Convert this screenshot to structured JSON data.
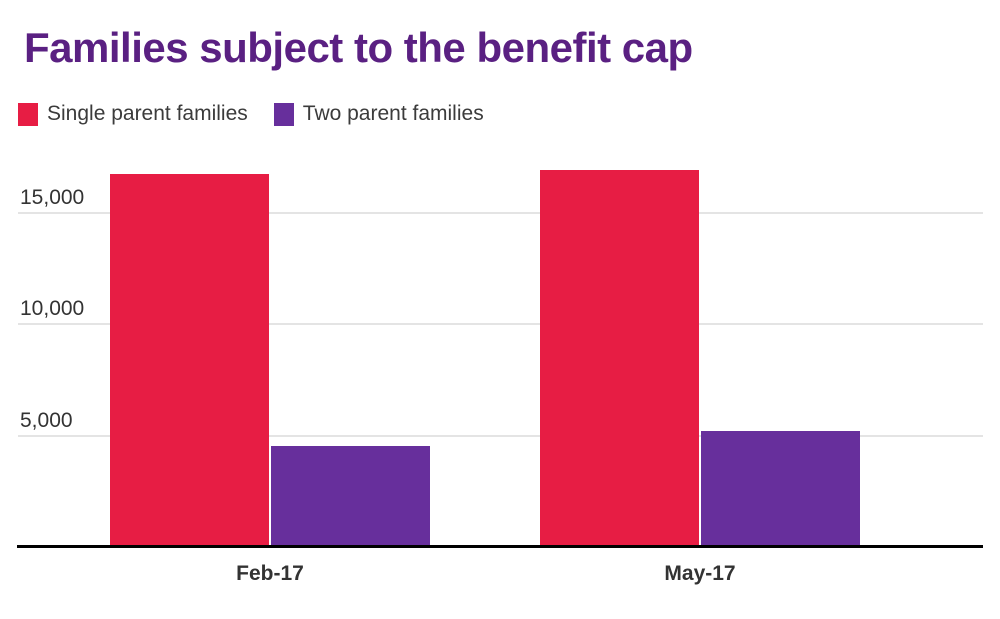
{
  "title": "Families subject to the benefit cap",
  "colors": {
    "title": "#5a2082",
    "single_parent": "#e71d44",
    "two_parent": "#672f9c",
    "axis_text": "#333333",
    "legend_text": "#3b3b3b",
    "gridline": "#e4e4e4",
    "axis_line": "#000000",
    "background": "#ffffff"
  },
  "legend": {
    "items": [
      {
        "label": "Single parent families",
        "color": "#e71d44"
      },
      {
        "label": "Two parent families",
        "color": "#672f9c"
      }
    ]
  },
  "chart_data": {
    "type": "bar",
    "title": "Families subject to the benefit cap",
    "categories": [
      "Feb-17",
      "May-17"
    ],
    "series": [
      {
        "name": "Single parent families",
        "color": "#e71d44",
        "values": [
          16750,
          16950
        ]
      },
      {
        "name": "Two parent families",
        "color": "#672f9c",
        "values": [
          4550,
          5200
        ]
      }
    ],
    "xlabel": "",
    "ylabel": "",
    "ylim": [
      0,
      17500
    ],
    "yticks": [
      5000,
      10000,
      15000
    ],
    "ytick_labels": [
      "5,000",
      "10,000",
      "15,000"
    ],
    "grid": true,
    "legend_position": "top-left"
  }
}
